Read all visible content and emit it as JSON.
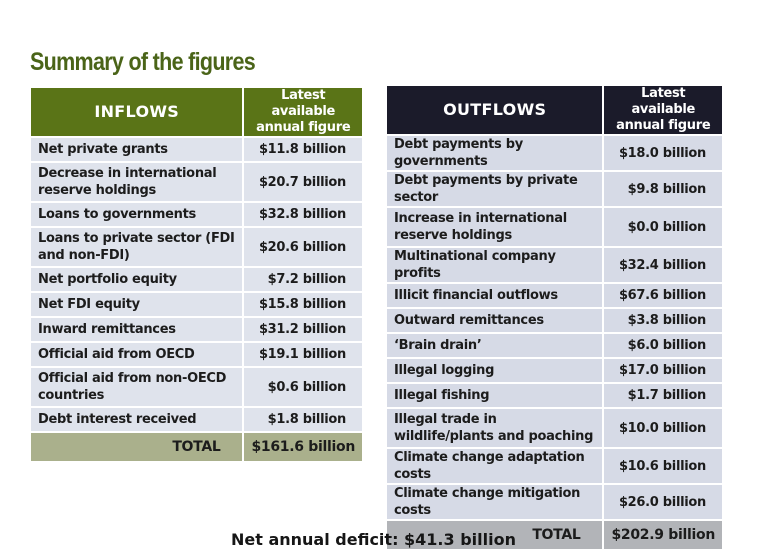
{
  "title": "Summary of the figures",
  "inflows": {
    "header": "INFLOWS",
    "figure_header_line1": "Latest available",
    "figure_header_line2": "annual figure",
    "rows": [
      {
        "label": "Net private grants",
        "value": "$11.8 billion"
      },
      {
        "label": "Decrease in international reserve holdings",
        "value": "$20.7 billion"
      },
      {
        "label": "Loans to governments",
        "value": "$32.8 billion"
      },
      {
        "label": "Loans to private sector (FDI and non-FDI)",
        "value": "$20.6 billion"
      },
      {
        "label": "Net portfolio equity",
        "value": "$7.2 billion"
      },
      {
        "label": "Net FDI equity",
        "value": "$15.8 billion"
      },
      {
        "label": "Inward remittances",
        "value": "$31.2 billion"
      },
      {
        "label": "Official aid from OECD",
        "value": "$19.1 billion"
      },
      {
        "label": "Official aid from non-OECD countries",
        "value": "$0.6 billion"
      },
      {
        "label": "Debt interest received",
        "value": "$1.8 billion"
      }
    ],
    "total_label": "TOTAL",
    "total_value": "$161.6 billion"
  },
  "outflows": {
    "header": "OUTFLOWS",
    "figure_header_line1": "Latest available",
    "figure_header_line2": "annual figure",
    "rows": [
      {
        "label": "Debt payments by governments",
        "value": "$18.0 billion"
      },
      {
        "label": "Debt payments by private sector",
        "value": "$9.8 billion"
      },
      {
        "label": "Increase in international reserve holdings",
        "value": "$0.0 billion"
      },
      {
        "label": "Multinational company profits",
        "value": "$32.4 billion"
      },
      {
        "label": "Illicit financial outflows",
        "value": "$67.6 billion"
      },
      {
        "label": "Outward remittances",
        "value": "$3.8 billion"
      },
      {
        "label": "‘Brain drain’",
        "value": "$6.0 billion"
      },
      {
        "label": "Illegal logging",
        "value": "$17.0 billion"
      },
      {
        "label": "Illegal fishing",
        "value": "$1.7 billion"
      },
      {
        "label": "Illegal trade in wildlife/plants and poaching",
        "value": "$10.0 billion"
      },
      {
        "label": "Climate change adaptation costs",
        "value": "$10.6 billion"
      },
      {
        "label": "Climate change mitigation costs",
        "value": "$26.0 billion"
      }
    ],
    "total_label": "TOTAL",
    "total_value": "$202.9 billion"
  },
  "net_deficit": "Net annual deficit: $41.3 billion",
  "colors": {
    "title": "#4a6418",
    "inflows_header": "#5a7417",
    "inflows_total": "#aab08c",
    "outflows_header": "#1b1b2a",
    "outflows_total": "#b2b4b8",
    "row_bg": "#dfe3ec"
  }
}
